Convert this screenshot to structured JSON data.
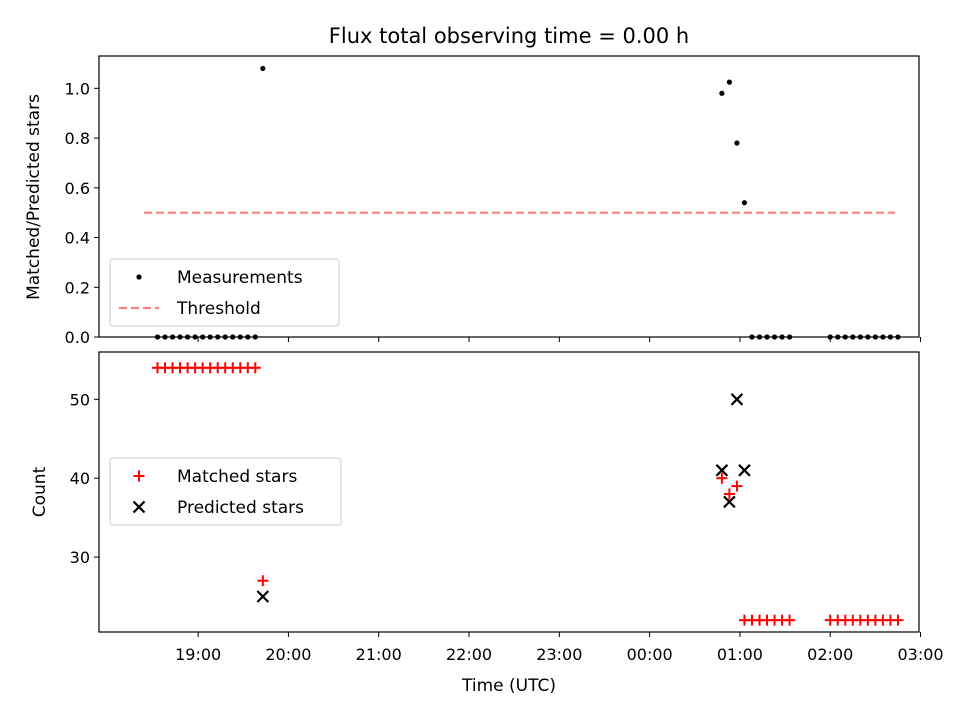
{
  "chart_data": {
    "type": "scatter",
    "title": "Flux total observing time = 0.00 h",
    "xlabel": "Time (UTC)",
    "x_ticks": [
      "19:00",
      "20:00",
      "21:00",
      "22:00",
      "23:00",
      "00:00",
      "01:00",
      "02:00",
      "03:00"
    ],
    "top_panel": {
      "ylabel": "Matched/Predicted stars",
      "ylim": [
        0.0,
        1.13
      ],
      "y_ticks": [
        "0.0",
        "0.2",
        "0.4",
        "0.6",
        "0.8",
        "1.0"
      ],
      "legend": {
        "position": "lower-left",
        "entries": [
          "Measurements",
          "Threshold"
        ]
      },
      "threshold": {
        "name": "Threshold",
        "y": 0.5,
        "x_range": [
          "18:30",
          "03:00"
        ],
        "color": "#ff8080"
      },
      "measurements": {
        "name": "Measurements",
        "color": "#000000",
        "points": [
          {
            "x": "18:33",
            "y": 0.0
          },
          {
            "x": "18:38",
            "y": 0.0
          },
          {
            "x": "18:43",
            "y": 0.0
          },
          {
            "x": "18:48",
            "y": 0.0
          },
          {
            "x": "18:53",
            "y": 0.0
          },
          {
            "x": "18:58",
            "y": 0.0
          },
          {
            "x": "19:03",
            "y": 0.0
          },
          {
            "x": "19:08",
            "y": 0.0
          },
          {
            "x": "19:13",
            "y": 0.0
          },
          {
            "x": "19:18",
            "y": 0.0
          },
          {
            "x": "19:23",
            "y": 0.0
          },
          {
            "x": "19:28",
            "y": 0.0
          },
          {
            "x": "19:33",
            "y": 0.0
          },
          {
            "x": "19:38",
            "y": 0.0
          },
          {
            "x": "19:43",
            "y": 1.08
          },
          {
            "x": "00:48",
            "y": 0.98
          },
          {
            "x": "00:53",
            "y": 1.025
          },
          {
            "x": "00:58",
            "y": 0.78
          },
          {
            "x": "01:03",
            "y": 0.54
          },
          {
            "x": "01:08",
            "y": 0.0
          },
          {
            "x": "01:13",
            "y": 0.0
          },
          {
            "x": "01:18",
            "y": 0.0
          },
          {
            "x": "01:23",
            "y": 0.0
          },
          {
            "x": "01:28",
            "y": 0.0
          },
          {
            "x": "01:33",
            "y": 0.0
          },
          {
            "x": "02:00",
            "y": 0.0
          },
          {
            "x": "02:05",
            "y": 0.0
          },
          {
            "x": "02:10",
            "y": 0.0
          },
          {
            "x": "02:15",
            "y": 0.0
          },
          {
            "x": "02:20",
            "y": 0.0
          },
          {
            "x": "02:25",
            "y": 0.0
          },
          {
            "x": "02:30",
            "y": 0.0
          },
          {
            "x": "02:35",
            "y": 0.0
          },
          {
            "x": "02:40",
            "y": 0.0
          },
          {
            "x": "02:45",
            "y": 0.0
          }
        ]
      }
    },
    "bottom_panel": {
      "ylabel": "Count",
      "ylim": [
        20.5,
        56
      ],
      "y_ticks": [
        "30",
        "40",
        "50"
      ],
      "legend": {
        "position": "center-left",
        "entries": [
          "Matched stars",
          "Predicted stars"
        ]
      },
      "series": [
        {
          "name": "Matched stars",
          "marker": "plus",
          "color": "#ff0000",
          "points": [
            {
              "x": "18:33",
              "y": 54
            },
            {
              "x": "18:38",
              "y": 54
            },
            {
              "x": "18:43",
              "y": 54
            },
            {
              "x": "18:48",
              "y": 54
            },
            {
              "x": "18:53",
              "y": 54
            },
            {
              "x": "18:58",
              "y": 54
            },
            {
              "x": "19:03",
              "y": 54
            },
            {
              "x": "19:08",
              "y": 54
            },
            {
              "x": "19:13",
              "y": 54
            },
            {
              "x": "19:18",
              "y": 54
            },
            {
              "x": "19:23",
              "y": 54
            },
            {
              "x": "19:28",
              "y": 54
            },
            {
              "x": "19:33",
              "y": 54
            },
            {
              "x": "19:38",
              "y": 54
            },
            {
              "x": "19:43",
              "y": 27
            },
            {
              "x": "00:48",
              "y": 40
            },
            {
              "x": "00:53",
              "y": 38
            },
            {
              "x": "00:58",
              "y": 39
            },
            {
              "x": "01:03",
              "y": 22
            },
            {
              "x": "01:08",
              "y": 22
            },
            {
              "x": "01:13",
              "y": 22
            },
            {
              "x": "01:18",
              "y": 22
            },
            {
              "x": "01:23",
              "y": 22
            },
            {
              "x": "01:28",
              "y": 22
            },
            {
              "x": "01:33",
              "y": 22
            },
            {
              "x": "02:00",
              "y": 22
            },
            {
              "x": "02:05",
              "y": 22
            },
            {
              "x": "02:10",
              "y": 22
            },
            {
              "x": "02:15",
              "y": 22
            },
            {
              "x": "02:20",
              "y": 22
            },
            {
              "x": "02:25",
              "y": 22
            },
            {
              "x": "02:30",
              "y": 22
            },
            {
              "x": "02:35",
              "y": 22
            },
            {
              "x": "02:40",
              "y": 22
            },
            {
              "x": "02:45",
              "y": 22
            }
          ]
        },
        {
          "name": "Predicted stars",
          "marker": "x",
          "color": "#000000",
          "points": [
            {
              "x": "19:43",
              "y": 25
            },
            {
              "x": "00:48",
              "y": 41
            },
            {
              "x": "00:53",
              "y": 37
            },
            {
              "x": "00:58",
              "y": 50
            },
            {
              "x": "01:03",
              "y": 41
            }
          ]
        }
      ]
    }
  }
}
